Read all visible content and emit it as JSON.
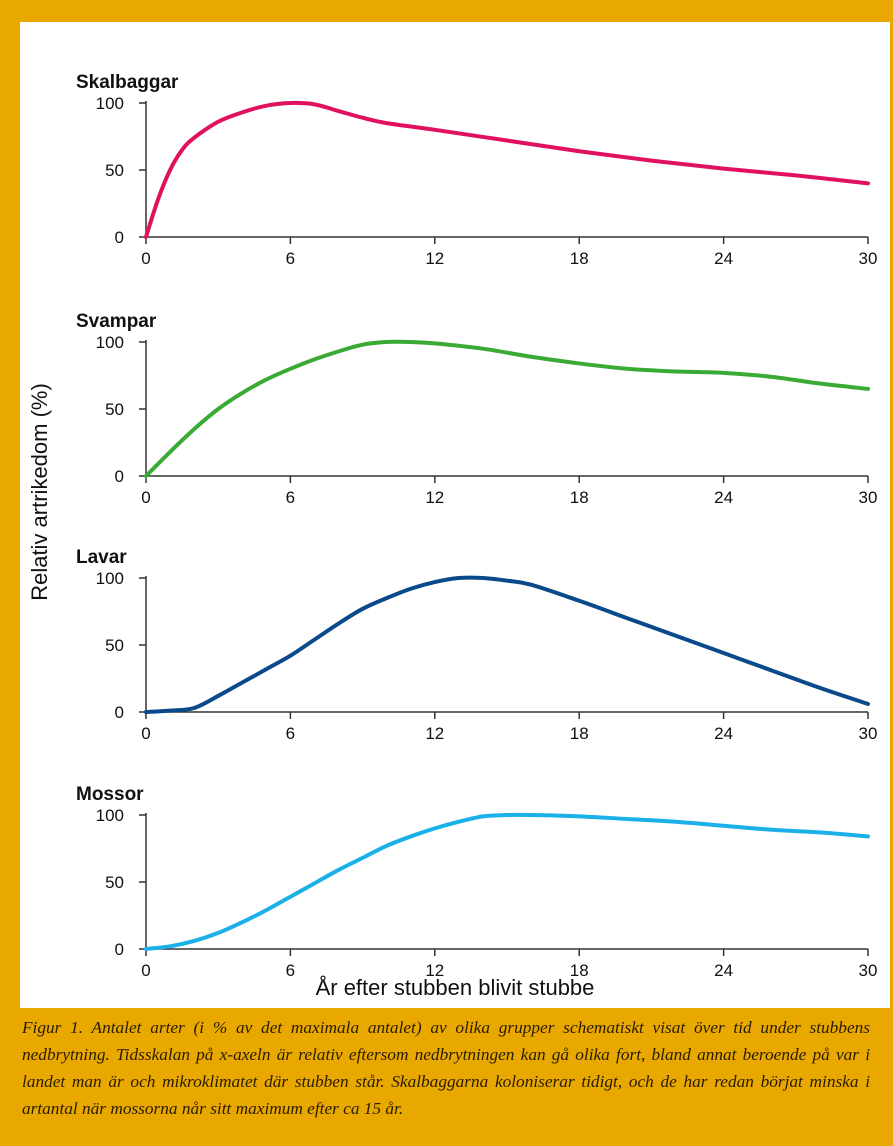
{
  "chart_data": {
    "type": "line",
    "ylabel": "Relativ artrikedom (%)",
    "xlabel": "År efter stubben blivit stubbe",
    "xlim": [
      0,
      30
    ],
    "ylim": [
      0,
      100
    ],
    "x_ticks": [
      "0",
      "6",
      "12",
      "18",
      "24",
      "30"
    ],
    "y_ticks": [
      "0",
      "50",
      "100"
    ],
    "grid": false,
    "panels": [
      {
        "title": "Skalbaggar",
        "color": "#e0115f",
        "x": [
          0,
          0.5,
          1,
          1.5,
          2,
          3,
          4,
          5,
          6,
          7,
          8,
          9,
          10,
          12,
          15,
          18,
          21,
          24,
          27,
          30
        ],
        "y": [
          0,
          28,
          50,
          65,
          74,
          86,
          93,
          98,
          100,
          99,
          94,
          89,
          85,
          80,
          72,
          64,
          57,
          51,
          46,
          40
        ]
      },
      {
        "title": "Svampar",
        "color": "#3aaa35",
        "x": [
          0,
          1,
          2,
          3,
          4,
          5,
          6,
          7,
          8,
          9,
          10,
          11,
          12,
          14,
          16,
          18,
          20,
          22,
          24,
          26,
          28,
          30
        ],
        "y": [
          0,
          18,
          35,
          50,
          62,
          72,
          80,
          87,
          93,
          98,
          100,
          100,
          99,
          95,
          89,
          84,
          80,
          78,
          77,
          74,
          69,
          65
        ]
      },
      {
        "title": "Lavar",
        "color": "#0a4a8a",
        "x": [
          0,
          1,
          2,
          3,
          4,
          5,
          6,
          7,
          8,
          9,
          10,
          11,
          12,
          13,
          14,
          15,
          16,
          18,
          20,
          22,
          24,
          26,
          28,
          30
        ],
        "y": [
          0,
          1,
          3,
          12,
          22,
          32,
          42,
          54,
          66,
          77,
          85,
          92,
          97,
          100,
          100,
          98,
          95,
          83,
          70,
          57,
          44,
          31,
          18,
          6
        ]
      },
      {
        "title": "Mossor",
        "color": "#1ab0e8",
        "x": [
          0,
          1,
          2,
          3,
          4,
          5,
          6,
          7,
          8,
          9,
          10,
          11,
          12,
          13,
          14,
          15,
          16,
          18,
          20,
          22,
          24,
          26,
          28,
          30
        ],
        "y": [
          0,
          2,
          6,
          12,
          20,
          29,
          39,
          49,
          59,
          68,
          77,
          84,
          90,
          95,
          99,
          100,
          100,
          99,
          97,
          95,
          92,
          89,
          87,
          84
        ]
      }
    ]
  },
  "caption": "Figur 1. Antalet arter (i % av det maximala antalet) av olika grupper schematiskt visat över tid under stubbens nedbrytning. Tidsskalan på x-axeln är relativ eftersom nedbrytningen kan gå olika fort, bland annat beroende på var i landet man är och mikroklimatet där stubben står. Skalbaggarna koloniserar tidigt, och de har redan börjat minska i artantal när mossorna når sitt maximum efter ca 15 år."
}
